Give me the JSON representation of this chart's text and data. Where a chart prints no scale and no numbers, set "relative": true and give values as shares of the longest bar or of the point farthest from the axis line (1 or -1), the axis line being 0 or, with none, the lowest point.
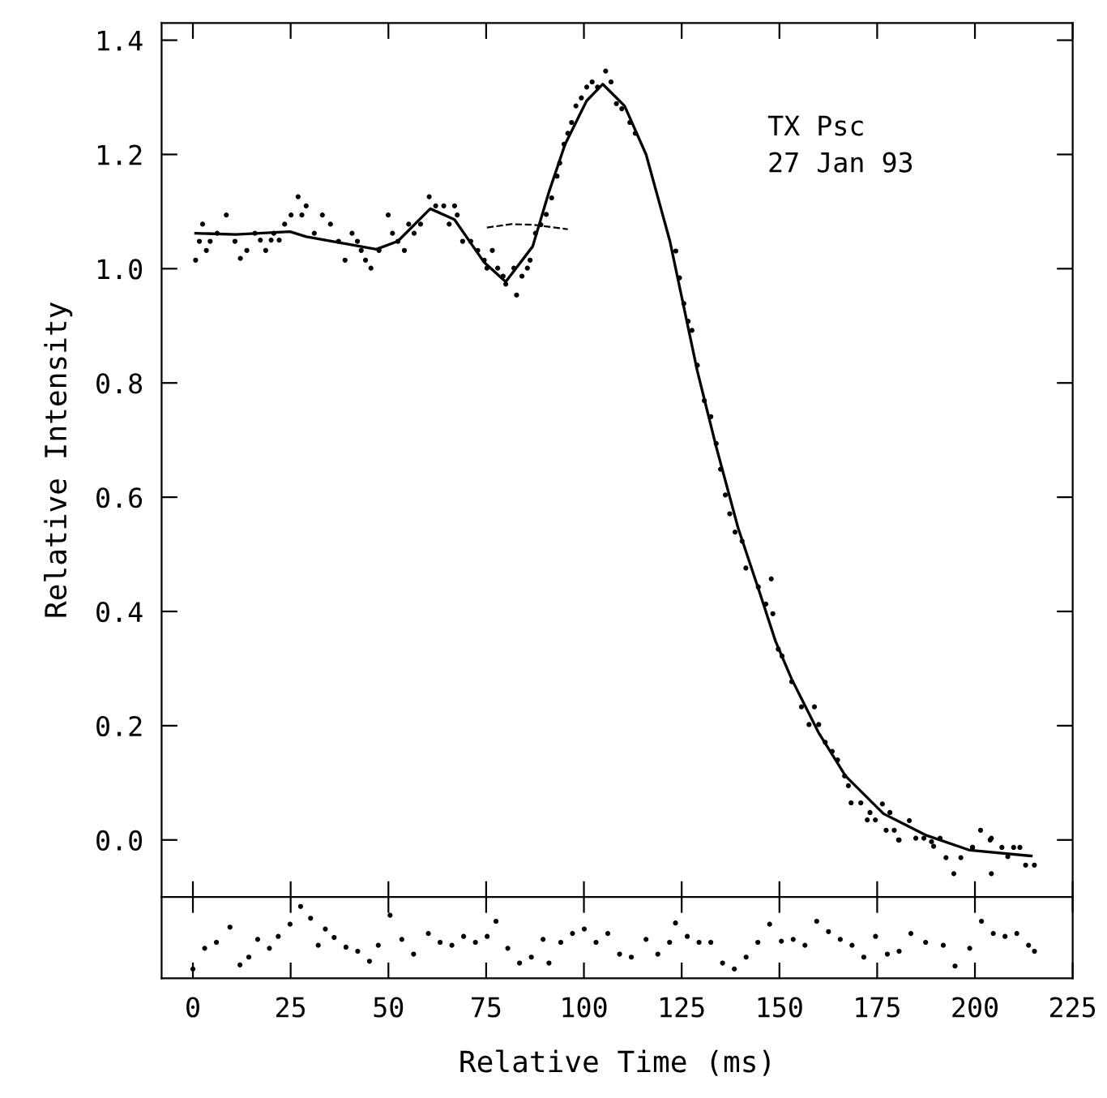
{
  "chart_data": [
    {
      "type": "scatter",
      "ylabel": "Relative Intensity",
      "annotations": [
        "TX Psc\n27 Jan 93"
      ],
      "xlim": [
        -8,
        225
      ],
      "ylim": [
        -0.1,
        1.43
      ],
      "xticks": [
        {
          "value": 0,
          "label": null
        },
        {
          "value": 25,
          "label": null
        },
        {
          "value": 50,
          "label": null
        },
        {
          "value": 75,
          "label": null
        },
        {
          "value": 100,
          "label": null
        },
        {
          "value": 125,
          "label": null
        },
        {
          "value": 150,
          "label": null
        },
        {
          "value": 175,
          "label": null
        },
        {
          "value": 200,
          "label": null
        },
        {
          "value": 225,
          "label": null
        }
      ],
      "yticks": [
        {
          "value": 0,
          "label": "0.0"
        },
        0.2,
        0.4,
        0.6,
        0.8,
        {
          "value": 1,
          "label": "1.0"
        },
        1.2,
        1.4
      ],
      "tick_labels": "y",
      "grid": false,
      "marker": "circle",
      "series": [
        {
          "type": "scatter",
          "color": "#000000",
          "x": [
            0.69,
            1.66,
            2.48,
            3.45,
            4.41,
            6.21,
            8.55,
            10.76,
            12.14,
            13.8,
            15.87,
            17.25,
            18.62,
            20.01,
            20.7,
            22.07,
            23.46,
            25.11,
            26.9,
            27.87,
            28.97,
            31.04,
            33.11,
            35.18,
            37.25,
            38.91,
            40.7,
            42.08,
            43.05,
            44.15,
            45.53,
            47.6,
            49.95,
            51.05,
            52.43,
            54.08,
            55.19,
            56.57,
            58.22,
            60.43,
            62.09,
            64.16,
            65.54,
            66.92,
            67.6,
            68.98,
            71.05,
            72.85,
            74.5,
            75.19,
            76.57,
            77.95,
            79.33,
            80.02,
            82.09,
            82.78,
            84.16,
            85.54,
            86.23,
            87.61,
            88.99,
            90.37,
            91.75,
            93.13,
            93.82,
            94.92,
            95.89,
            96.85,
            97.96,
            99.34,
            100.72,
            102.1,
            103.48,
            105.55,
            106.93,
            108.31,
            109.69,
            111.75,
            113.13,
            123.49,
            124.45,
            125.56,
            126.66,
            127.63,
            129.01,
            130.8,
            132.46,
            133.84,
            134.94,
            136.18,
            137.29,
            138.66,
            140.46,
            141.42,
            144.6,
            146.53,
            147.91,
            148.32,
            149.7,
            150.67,
            153.15,
            155.63,
            157.57,
            158.95,
            160.05,
            161.7,
            163.5,
            164.88,
            166.67,
            167.64,
            168.33,
            170.81,
            172.47,
            173.16,
            174.54,
            176.33,
            177.29,
            178.26,
            179.36,
            180.47,
            180.61,
            183.23,
            184.88,
            186.95,
            188.9,
            189.44,
            191.09,
            192.6,
            194.6,
            196.4,
            199.37,
            199.4,
            201.44,
            203.9,
            204.2,
            204.2,
            206.9,
            208.4,
            209.9,
            211.5,
            212.97,
            215.2
          ],
          "values": [
            1.015,
            1.048,
            1.078,
            1.032,
            1.048,
            1.062,
            1.094,
            1.048,
            1.018,
            1.032,
            1.062,
            1.05,
            1.032,
            1.05,
            1.062,
            1.05,
            1.078,
            1.094,
            1.126,
            1.094,
            1.11,
            1.062,
            1.094,
            1.078,
            1.048,
            1.015,
            1.062,
            1.048,
            1.032,
            1.015,
            1.001,
            1.032,
            1.094,
            1.062,
            1.048,
            1.032,
            1.078,
            1.062,
            1.078,
            1.126,
            1.11,
            1.11,
            1.078,
            1.11,
            1.094,
            1.048,
            1.048,
            1.032,
            1.015,
            1.001,
            1.032,
            1.001,
            0.987,
            0.973,
            1.001,
            0.954,
            0.987,
            1.001,
            1.015,
            1.062,
            1.077,
            1.095,
            1.124,
            1.162,
            1.185,
            1.218,
            1.237,
            1.256,
            1.285,
            1.299,
            1.318,
            1.327,
            1.318,
            1.346,
            1.327,
            1.289,
            1.28,
            1.256,
            1.237,
            1.031,
            0.984,
            0.939,
            0.908,
            0.892,
            0.831,
            0.769,
            0.741,
            0.694,
            0.649,
            0.604,
            0.571,
            0.539,
            0.523,
            0.476,
            0.443,
            0.413,
            0.457,
            0.396,
            0.334,
            0.322,
            0.277,
            0.233,
            0.202,
            0.233,
            0.202,
            0.171,
            0.155,
            0.14,
            0.112,
            0.095,
            0.065,
            0.065,
            0.035,
            0.048,
            0.035,
            0.063,
            0.017,
            0.048,
            0.017,
            0.0,
            0.0,
            0.034,
            0.003,
            0.003,
            -0.003,
            -0.011,
            0.003,
            -0.031,
            -0.059,
            -0.031,
            -0.013,
            -0.013,
            0.017,
            0.0,
            0.003,
            -0.059,
            -0.013,
            -0.029,
            -0.013,
            -0.013,
            -0.044,
            -0.044
          ]
        },
        {
          "type": "line",
          "color": "#000000",
          "marker": "none",
          "line_style": "solid",
          "x": [
            0.7,
            11,
            24.8,
            29,
            46.9,
            52.4,
            60.7,
            66.9,
            74.5,
            80,
            86.9,
            91,
            95.2,
            100.7,
            104.8,
            110.4,
            115.9,
            122,
            129,
            133.8,
            139.4,
            144.9,
            149,
            153.1,
            160,
            166.9,
            176.6,
            187.6,
            198.7,
            214.4
          ],
          "values": [
            1.062,
            1.06,
            1.065,
            1.056,
            1.034,
            1.048,
            1.105,
            1.086,
            1.011,
            0.977,
            1.039,
            1.133,
            1.218,
            1.294,
            1.323,
            1.285,
            1.2,
            1.048,
            0.821,
            0.689,
            0.547,
            0.434,
            0.348,
            0.282,
            0.188,
            0.112,
            0.046,
            0.008,
            -0.018,
            -0.028
          ]
        },
        {
          "type": "line",
          "color": "#000000",
          "marker": "none",
          "line_style": "dashed",
          "x": [
            75.19,
            81.4,
            86.92,
            95.89
          ],
          "values": [
            1.072,
            1.078,
            1.077,
            1.069
          ]
        }
      ]
    },
    {
      "type": "scatter",
      "xlabel": "Relative Time (ms)",
      "relative": true,
      "xlim": [
        -8,
        225
      ],
      "xticks": [
        0,
        25,
        50,
        75,
        100,
        125,
        150,
        175,
        200,
        225
      ],
      "tick_labels": "x",
      "grid": false,
      "marker": "circle",
      "series": [
        {
          "color": "#000000",
          "x": [
            0.0,
            3.01,
            6.02,
            9.48,
            12.04,
            14.3,
            16.56,
            19.57,
            21.83,
            24.84,
            27.54,
            30.1,
            32.06,
            33.87,
            36.12,
            39.14,
            42.15,
            45.16,
            47.41,
            50.42,
            53.43,
            56.44,
            60.21,
            63.22,
            66.23,
            69.24,
            72.25,
            75.26,
            77.52,
            80.53,
            83.54,
            86.55,
            89.56,
            91.06,
            94.07,
            97.08,
            100.09,
            103.1,
            106.11,
            109.12,
            112.13,
            115.89,
            118.9,
            121.91,
            123.42,
            126.43,
            129.44,
            132.45,
            135.46,
            138.47,
            141.48,
            144.49,
            147.5,
            150.51,
            153.52,
            156.53,
            159.54,
            162.55,
            165.56,
            168.57,
            171.58,
            174.59,
            177.6,
            180.61,
            183.62,
            187.39,
            191.9,
            194.91,
            198.67,
            201.68,
            204.69,
            207.7,
            210.71,
            213.72,
            215.23
          ],
          "values": [
            0.13,
            0.418,
            0.501,
            0.712,
            0.187,
            0.295,
            0.542,
            0.418,
            0.583,
            0.753,
            1,
            0.836,
            0.46,
            0.686,
            0.568,
            0.434,
            0.377,
            0.238,
            0.46,
            0.877,
            0.542,
            0.337,
            0.624,
            0.501,
            0.46,
            0.583,
            0.501,
            0.583,
            0.794,
            0.418,
            0.213,
            0.295,
            0.542,
            0.213,
            0.501,
            0.624,
            0.686,
            0.501,
            0.624,
            0.337,
            0.295,
            0.542,
            0.337,
            0.501,
            0.769,
            0.583,
            0.501,
            0.501,
            0.213,
            0.13,
            0.295,
            0.501,
            0.753,
            0.517,
            0.542,
            0.46,
            0.794,
            0.65,
            0.542,
            0.46,
            0.295,
            0.583,
            0.337,
            0.377,
            0.624,
            0.501,
            0.46,
            0.171,
            0.418,
            0.794,
            0.624,
            0.583,
            0.624,
            0.46,
            0.377
          ]
        }
      ]
    }
  ]
}
